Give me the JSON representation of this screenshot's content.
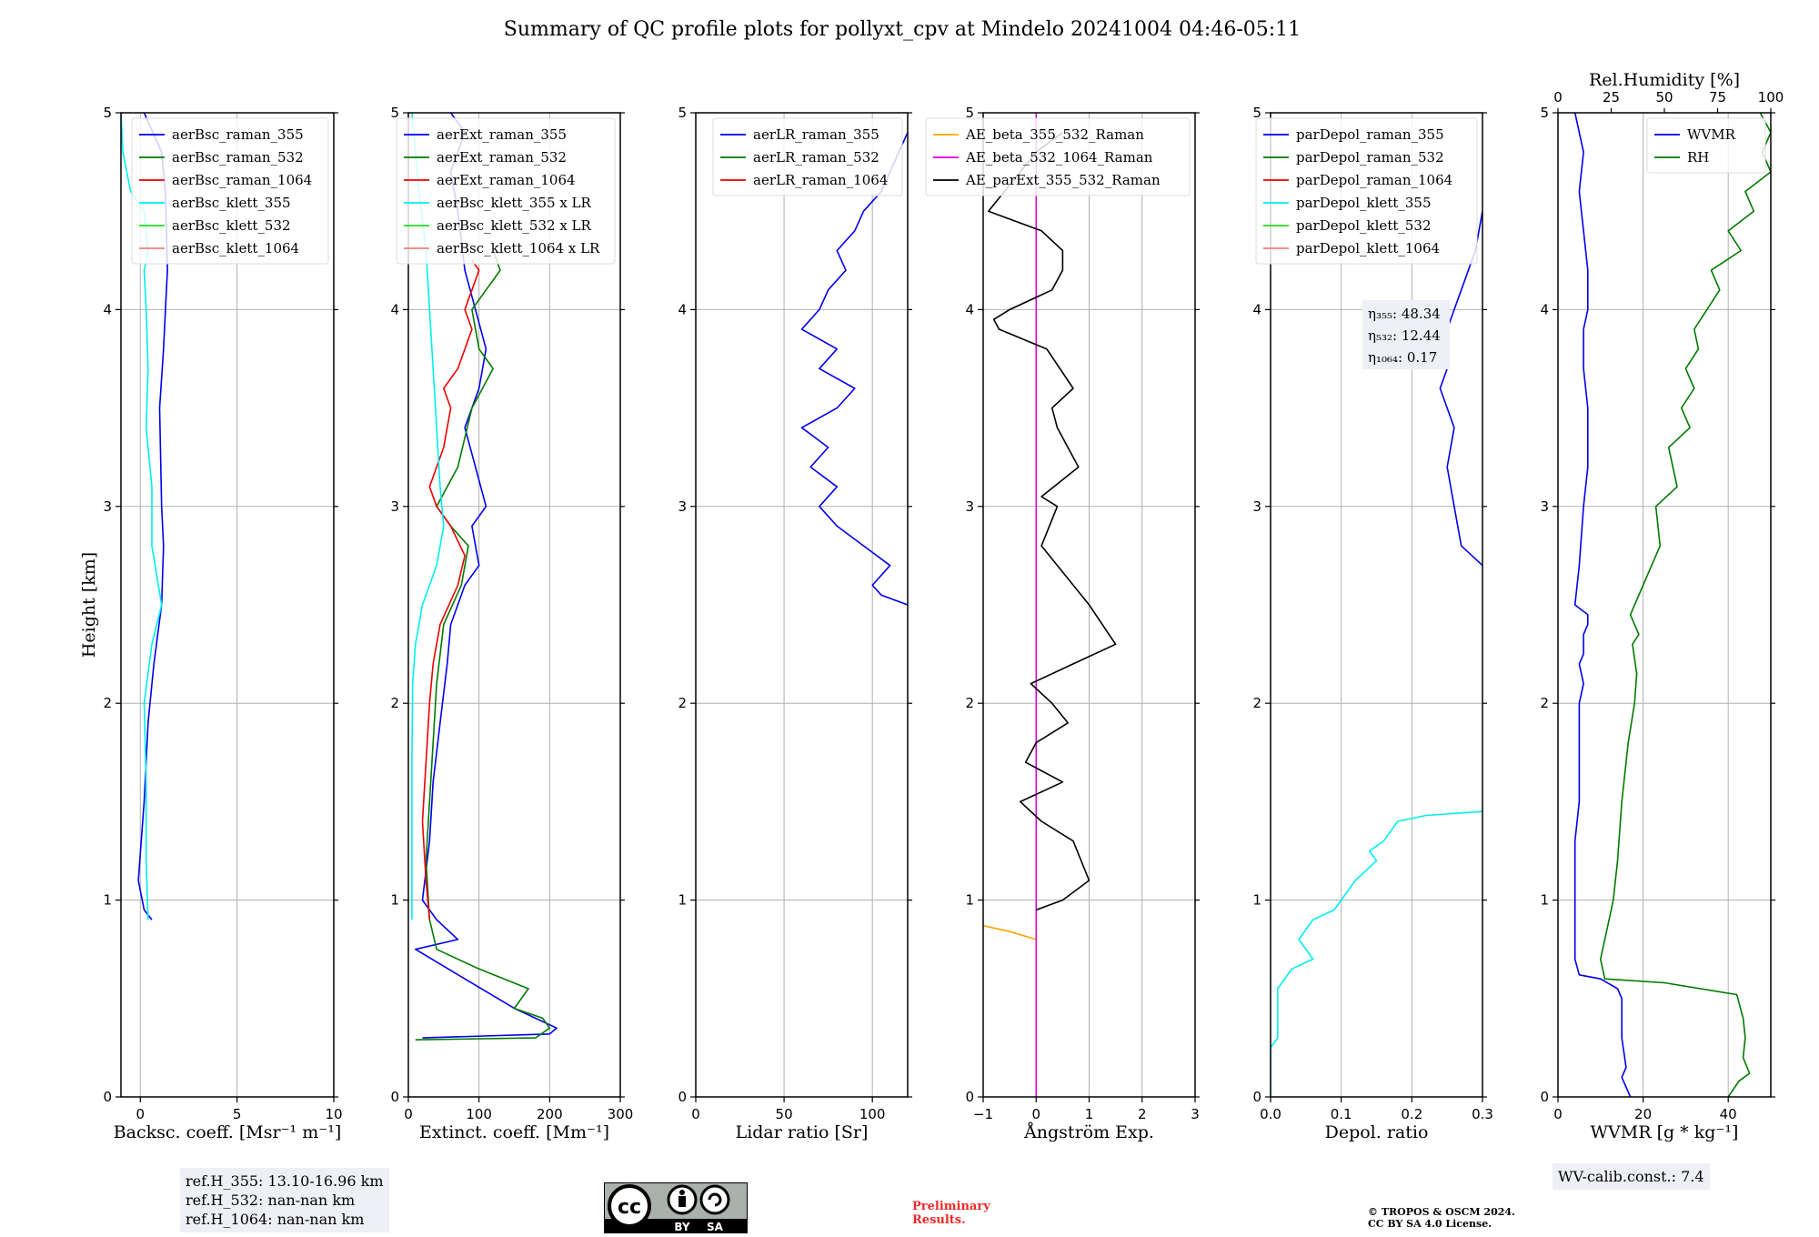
{
  "figure": {
    "title": "Summary of QC profile plots for pollyxt_cpv at Mindelo 20241004 04:46-05:11"
  },
  "reference_heights": {
    "lines": [
      "ref.H_355: 13.10-16.96 km",
      "ref.H_532: nan-nan km",
      "ref.H_1064: nan-nan km"
    ]
  },
  "wv_calib": {
    "text": "WV-calib.const.: 7.4"
  },
  "license": {
    "by": "BY",
    "sa": "SA",
    "cc": "cc"
  },
  "preliminary": {
    "line1": "Preliminary",
    "line2": "Results."
  },
  "copyright": {
    "line1": "© TROPOS & OSCM 2024.",
    "line2": "CC BY SA 4.0 License."
  },
  "colors": {
    "blue": "#0000ee",
    "green": "#007a00",
    "red": "#ee0000",
    "cyan": "#00eeee",
    "lime": "#22dd22",
    "salmon": "#f08080",
    "orange": "#ffa500",
    "magenta": "#dd00dd",
    "black": "#000000",
    "grid": "#b0b0b0"
  },
  "chart_data": [
    {
      "type": "line",
      "id": "backscatter",
      "xlabel": "Backsc. coeff. [Msr⁻¹ m⁻¹]",
      "ylabel": "Height [km]",
      "xlim": [
        -1,
        10
      ],
      "ylim": [
        0,
        5
      ],
      "xticks": [
        0,
        5,
        10
      ],
      "xtick_labels": [
        "0",
        "5",
        "10"
      ],
      "yticks": [
        0,
        1,
        2,
        3,
        4,
        5
      ],
      "ytick_labels": [
        "0",
        "1",
        "2",
        "3",
        "4",
        "5"
      ],
      "grid": true,
      "legend": "top-right",
      "series": [
        {
          "name": "aerBsc_raman_355",
          "color": "blue",
          "x": [
            0.6,
            0.2,
            -0.1,
            0.2,
            0.4,
            0.7,
            1.1,
            1.2,
            1.1,
            1.0,
            1.2,
            1.3,
            1.4,
            1.3,
            1.1,
            0.2
          ],
          "y": [
            0.9,
            0.95,
            1.1,
            1.5,
            1.9,
            2.2,
            2.5,
            2.8,
            3.0,
            3.5,
            3.8,
            4.0,
            4.2,
            4.6,
            4.8,
            5.0
          ]
        },
        {
          "name": "aerBsc_raman_532",
          "color": "green",
          "x": [],
          "y": []
        },
        {
          "name": "aerBsc_raman_1064",
          "color": "red",
          "x": [],
          "y": []
        },
        {
          "name": "aerBsc_klett_355",
          "color": "cyan",
          "x": [
            0.4,
            0.3,
            0.3,
            0.2,
            0.6,
            1.1,
            0.6,
            0.6,
            0.3,
            0.4,
            0.3,
            0.2,
            0.4,
            0.2,
            -0.5,
            -0.9,
            -1.0
          ],
          "y": [
            0.9,
            1.2,
            1.6,
            2.0,
            2.3,
            2.5,
            2.8,
            3.1,
            3.4,
            3.7,
            4.0,
            4.2,
            4.3,
            4.5,
            4.6,
            4.8,
            5.0
          ]
        },
        {
          "name": "aerBsc_klett_532",
          "color": "lime",
          "x": [],
          "y": []
        },
        {
          "name": "aerBsc_klett_1064",
          "color": "salmon",
          "x": [],
          "y": []
        }
      ]
    },
    {
      "type": "line",
      "id": "extinction",
      "xlabel": "Extinct. coeff. [Mm⁻¹]",
      "xlim": [
        0,
        300
      ],
      "ylim": [
        0,
        5
      ],
      "xticks": [
        0,
        100,
        200,
        300
      ],
      "xtick_labels": [
        "0",
        "100",
        "200",
        "300"
      ],
      "yticks": [
        0,
        1,
        2,
        3,
        4,
        5
      ],
      "ytick_labels": [
        "0",
        "1",
        "2",
        "3",
        "4",
        "5"
      ],
      "grid": true,
      "legend": "top-right",
      "series": [
        {
          "name": "aerExt_raman_355",
          "color": "blue",
          "x": [
            20,
            200,
            210,
            150,
            80,
            10,
            70,
            40,
            20,
            30,
            35,
            45,
            55,
            60,
            80,
            100,
            90,
            110,
            95,
            80,
            100,
            110,
            95,
            80,
            70,
            60,
            80,
            60
          ],
          "y": [
            0.3,
            0.32,
            0.35,
            0.45,
            0.6,
            0.75,
            0.8,
            0.9,
            1.0,
            1.3,
            1.6,
            1.9,
            2.2,
            2.4,
            2.6,
            2.7,
            2.9,
            3.0,
            3.2,
            3.4,
            3.6,
            3.8,
            4.0,
            4.2,
            4.5,
            4.7,
            4.9,
            5.0
          ]
        },
        {
          "name": "aerExt_raman_532",
          "color": "green",
          "x": [
            10,
            180,
            200,
            190,
            150,
            170,
            100,
            40,
            30,
            25,
            30,
            35,
            40,
            50,
            75,
            85,
            60,
            40,
            70,
            90,
            120,
            100,
            90,
            110,
            130,
            120
          ],
          "y": [
            0.29,
            0.3,
            0.35,
            0.4,
            0.45,
            0.55,
            0.65,
            0.75,
            0.9,
            1.2,
            1.5,
            1.8,
            2.1,
            2.4,
            2.6,
            2.8,
            2.9,
            3.0,
            3.2,
            3.5,
            3.7,
            3.8,
            4.0,
            4.1,
            4.2,
            4.3
          ]
        },
        {
          "name": "aerExt_raman_1064",
          "color": "red",
          "x": [
            30,
            25,
            20,
            25,
            30,
            35,
            45,
            70,
            80,
            60,
            40,
            30,
            50,
            60,
            50,
            70,
            90,
            80,
            90,
            100,
            90
          ],
          "y": [
            0.9,
            1.1,
            1.4,
            1.7,
            2.0,
            2.2,
            2.4,
            2.6,
            2.75,
            2.9,
            3.0,
            3.1,
            3.3,
            3.5,
            3.6,
            3.7,
            3.9,
            4.0,
            4.1,
            4.2,
            4.25
          ]
        },
        {
          "name": "aerBsc_klett_355 x LR",
          "color": "cyan",
          "x": [
            5,
            5,
            5,
            6,
            10,
            20,
            40,
            50,
            45,
            40,
            35,
            30,
            25,
            15,
            10,
            5
          ],
          "y": [
            0.9,
            1.3,
            1.7,
            2.1,
            2.3,
            2.5,
            2.7,
            2.9,
            3.1,
            3.4,
            3.7,
            4.0,
            4.3,
            4.6,
            4.8,
            5.0
          ]
        },
        {
          "name": "aerBsc_klett_532 x LR",
          "color": "lime",
          "x": [],
          "y": []
        },
        {
          "name": "aerBsc_klett_1064 x LR",
          "color": "salmon",
          "x": [],
          "y": []
        }
      ]
    },
    {
      "type": "line",
      "id": "lidar_ratio",
      "xlabel": "Lidar ratio [Sr]",
      "xlim": [
        0,
        120
      ],
      "ylim": [
        0,
        5
      ],
      "xticks": [
        0,
        50,
        100
      ],
      "xtick_labels": [
        "0",
        "50",
        "100"
      ],
      "yticks": [
        0,
        1,
        2,
        3,
        4,
        5
      ],
      "ytick_labels": [
        "0",
        "1",
        "2",
        "3",
        "4",
        "5"
      ],
      "grid": true,
      "legend": "top-right",
      "series": [
        {
          "name": "aerLR_raman_355",
          "color": "blue",
          "x": [
            120,
            105,
            100,
            110,
            95,
            80,
            70,
            80,
            65,
            75,
            60,
            80,
            90,
            70,
            80,
            60,
            70,
            75,
            85,
            80,
            90,
            95,
            105,
            115,
            120
          ],
          "y": [
            2.5,
            2.55,
            2.6,
            2.7,
            2.8,
            2.9,
            3.0,
            3.1,
            3.2,
            3.3,
            3.4,
            3.5,
            3.6,
            3.7,
            3.8,
            3.9,
            4.0,
            4.1,
            4.2,
            4.3,
            4.4,
            4.5,
            4.6,
            4.8,
            4.9
          ]
        },
        {
          "name": "aerLR_raman_532",
          "color": "green",
          "x": [],
          "y": []
        },
        {
          "name": "aerLR_raman_1064",
          "color": "red",
          "x": [],
          "y": []
        }
      ]
    },
    {
      "type": "line",
      "id": "angstrom",
      "xlabel": "Ångström Exp.",
      "xlim": [
        -1,
        3
      ],
      "ylim": [
        0,
        5
      ],
      "xticks": [
        -1,
        0,
        1,
        2,
        3
      ],
      "xtick_labels": [
        "−1",
        "0",
        "1",
        "2",
        "3"
      ],
      "yticks": [
        0,
        1,
        2,
        3,
        4,
        5
      ],
      "ytick_labels": [
        "0",
        "1",
        "2",
        "3",
        "4",
        "5"
      ],
      "grid": true,
      "legend": "top-right",
      "series": [
        {
          "name": "AE_beta_355_532_Raman",
          "color": "orange",
          "x": [
            -1.0,
            -0.5,
            0.0
          ],
          "y": [
            0.87,
            0.84,
            0.8
          ]
        },
        {
          "name": "AE_beta_532_1064_Raman",
          "color": "magenta",
          "x": [
            0,
            0
          ],
          "y": [
            0,
            5
          ]
        },
        {
          "name": "AE_parExt_355_532_Raman",
          "color": "black",
          "x": [
            0.0,
            0.5,
            1.0,
            0.7,
            0.1,
            -0.3,
            0.5,
            -0.2,
            0.0,
            0.6,
            0.3,
            -0.1,
            0.7,
            1.5,
            1.0,
            0.1,
            0.4,
            0.1,
            0.8,
            0.4,
            0.3,
            0.7,
            0.2,
            -0.7,
            -0.8,
            -0.5,
            0.3,
            0.5,
            0.5,
            0.1,
            -0.9,
            -0.3,
            0.0,
            0.5
          ],
          "y": [
            0.95,
            1.0,
            1.1,
            1.3,
            1.4,
            1.5,
            1.6,
            1.7,
            1.8,
            1.9,
            2.0,
            2.1,
            2.2,
            2.3,
            2.5,
            2.8,
            3.0,
            3.05,
            3.2,
            3.4,
            3.5,
            3.6,
            3.8,
            3.9,
            3.95,
            4.0,
            4.1,
            4.2,
            4.3,
            4.4,
            4.5,
            4.7,
            4.8,
            4.9
          ]
        }
      ]
    },
    {
      "type": "line",
      "id": "depol",
      "xlabel": "Depol. ratio",
      "xlim": [
        0,
        0.3
      ],
      "ylim": [
        0,
        5
      ],
      "xticks": [
        0,
        0.1,
        0.2,
        0.3
      ],
      "xtick_labels": [
        "0.0",
        "0.1",
        "0.2",
        "0.3"
      ],
      "yticks": [
        0,
        1,
        2,
        3,
        4,
        5
      ],
      "ytick_labels": [
        "0",
        "1",
        "2",
        "3",
        "4",
        "5"
      ],
      "grid": true,
      "legend": "top-right",
      "annotations": [
        "η₃₅₅: 48.34",
        "η₅₃₂: 12.44",
        "η₁₀₆₄: 0.17"
      ],
      "series": [
        {
          "name": "parDepol_raman_355",
          "color": "blue",
          "x": [
            0.3,
            0.27,
            0.26,
            0.25,
            0.26,
            0.25,
            0.24,
            0.25,
            0.24,
            0.25,
            0.26,
            0.27,
            0.29,
            0.3
          ],
          "y": [
            2.7,
            2.8,
            3.0,
            3.2,
            3.4,
            3.5,
            3.6,
            3.7,
            3.8,
            3.9,
            4.0,
            4.1,
            4.3,
            4.5
          ]
        },
        {
          "name": "parDepol_raman_532",
          "color": "green",
          "x": [],
          "y": []
        },
        {
          "name": "parDepol_raman_1064",
          "color": "red",
          "x": [],
          "y": []
        },
        {
          "name": "parDepol_klett_355",
          "color": "cyan",
          "x": [
            0.0,
            0.0,
            0.01,
            0.01,
            0.03,
            0.06,
            0.04,
            0.05,
            0.06,
            0.09,
            0.1,
            0.11,
            0.12,
            0.15,
            0.14,
            0.16,
            0.18,
            0.22,
            0.3
          ],
          "y": [
            0.0,
            0.25,
            0.3,
            0.55,
            0.65,
            0.7,
            0.8,
            0.85,
            0.9,
            0.95,
            1.0,
            1.05,
            1.1,
            1.2,
            1.25,
            1.3,
            1.4,
            1.43,
            1.45
          ]
        },
        {
          "name": "parDepol_klett_532",
          "color": "lime",
          "x": [],
          "y": []
        },
        {
          "name": "parDepol_klett_1064",
          "color": "salmon",
          "x": [],
          "y": []
        }
      ]
    },
    {
      "type": "line",
      "id": "wvmr",
      "xlabel": "WVMR [g * kg⁻¹]",
      "x2label": "Rel.Humidity [%]",
      "xlim": [
        0,
        50
      ],
      "x2lim": [
        0,
        100
      ],
      "ylim": [
        0,
        5
      ],
      "xticks": [
        0,
        20,
        40
      ],
      "xtick_labels": [
        "0",
        "20",
        "40"
      ],
      "x2ticks": [
        0,
        25,
        50,
        75,
        100
      ],
      "x2tick_labels": [
        "0",
        "25",
        "50",
        "75",
        "100"
      ],
      "yticks": [
        0,
        1,
        2,
        3,
        4,
        5
      ],
      "ytick_labels": [
        "0",
        "1",
        "2",
        "3",
        "4",
        "5"
      ],
      "grid": true,
      "legend": "top-right",
      "series": [
        {
          "name": "WVMR",
          "color": "blue",
          "axis": "x",
          "x": [
            17,
            15,
            16,
            15,
            15,
            14,
            10,
            5,
            4,
            4,
            4,
            5,
            5,
            5,
            6,
            5,
            6,
            6,
            7,
            7,
            4,
            5,
            6,
            7,
            7,
            6,
            6,
            7,
            7,
            6,
            5,
            6,
            5,
            4
          ],
          "y": [
            0.0,
            0.1,
            0.15,
            0.3,
            0.5,
            0.55,
            0.6,
            0.62,
            0.7,
            1.0,
            1.3,
            1.5,
            1.8,
            2.0,
            2.1,
            2.2,
            2.25,
            2.35,
            2.4,
            2.45,
            2.5,
            2.7,
            3.0,
            3.2,
            3.5,
            3.7,
            3.9,
            4.0,
            4.2,
            4.4,
            4.6,
            4.8,
            4.9,
            5.0
          ]
        },
        {
          "name": "RH",
          "color": "green",
          "axis": "x2",
          "x": [
            80,
            85,
            90,
            87,
            88,
            87,
            84,
            50,
            22,
            20,
            24,
            26,
            28,
            30,
            33,
            36,
            37,
            35,
            38,
            36,
            34,
            40,
            48,
            46,
            56,
            52,
            62,
            58,
            64,
            60,
            66,
            64,
            70,
            76,
            72,
            86,
            80,
            92,
            88,
            100,
            96,
            100,
            95
          ],
          "y": [
            0.0,
            0.08,
            0.12,
            0.2,
            0.3,
            0.4,
            0.52,
            0.58,
            0.6,
            0.7,
            0.9,
            1.0,
            1.2,
            1.5,
            1.8,
            2.0,
            2.15,
            2.3,
            2.35,
            2.4,
            2.45,
            2.6,
            2.8,
            3.0,
            3.1,
            3.3,
            3.4,
            3.5,
            3.6,
            3.7,
            3.8,
            3.9,
            4.0,
            4.1,
            4.2,
            4.3,
            4.4,
            4.5,
            4.6,
            4.7,
            4.8,
            4.9,
            5.0
          ]
        }
      ]
    }
  ]
}
